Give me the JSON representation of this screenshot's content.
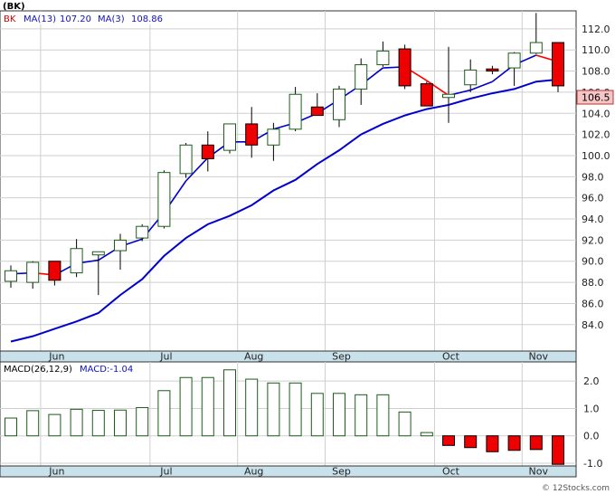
{
  "chart_data": [
    {
      "type": "candlestick",
      "title": "(BK)",
      "legend": [
        {
          "name": "BK",
          "color": "#ff0000"
        },
        {
          "name": "MA(13)",
          "value": "107.20",
          "color": "#0000cc"
        },
        {
          "name": "MA(3)",
          "value": "108.86",
          "color": "#ff0000"
        }
      ],
      "price_label": "106.5",
      "y_ticks": [
        84.0,
        86.0,
        88.0,
        90.0,
        92.0,
        94.0,
        96.0,
        98.0,
        100.0,
        102.0,
        104.0,
        106.0,
        108.0,
        110.0,
        112.0
      ],
      "y_tick_labels": [
        "84.0",
        "86.0",
        "88.0",
        "90.0",
        "92.0",
        "94.0",
        "96.0",
        "98.0",
        "100.0",
        "102.0",
        "104.0",
        "106.0",
        "108.0",
        "110.0",
        "112.0"
      ],
      "ylim": [
        81.5,
        113.7
      ],
      "x_labels": [
        {
          "label": "Jun",
          "week": 1.4
        },
        {
          "label": "Jul",
          "week": 6.4
        },
        {
          "label": "Aug",
          "week": 10.4
        },
        {
          "label": "Sep",
          "week": 14.4
        },
        {
          "label": "Oct",
          "week": 19.4
        },
        {
          "label": "Nov",
          "week": 23.4
        }
      ],
      "candles": [
        {
          "o": 88.1,
          "h": 89.6,
          "l": 87.5,
          "c": 89.1
        },
        {
          "o": 88.0,
          "h": 90.0,
          "l": 87.4,
          "c": 89.9
        },
        {
          "o": 90.0,
          "h": 90.0,
          "l": 87.7,
          "c": 88.2
        },
        {
          "o": 88.9,
          "h": 92.1,
          "l": 88.5,
          "c": 91.2
        },
        {
          "o": 90.6,
          "h": 90.9,
          "l": 86.8,
          "c": 90.9
        },
        {
          "o": 91.0,
          "h": 92.6,
          "l": 89.2,
          "c": 92.0
        },
        {
          "o": 92.2,
          "h": 93.5,
          "l": 91.9,
          "c": 93.3
        },
        {
          "o": 93.3,
          "h": 98.6,
          "l": 93.1,
          "c": 98.4
        },
        {
          "o": 98.3,
          "h": 101.2,
          "l": 97.9,
          "c": 101.0
        },
        {
          "o": 101.0,
          "h": 102.3,
          "l": 98.5,
          "c": 99.7
        },
        {
          "o": 100.5,
          "h": 103.0,
          "l": 100.2,
          "c": 103.0
        },
        {
          "o": 103.0,
          "h": 104.6,
          "l": 99.8,
          "c": 101.0
        },
        {
          "o": 101.0,
          "h": 103.1,
          "l": 99.5,
          "c": 102.5
        },
        {
          "o": 102.5,
          "h": 106.5,
          "l": 102.3,
          "c": 105.8
        },
        {
          "o": 104.6,
          "h": 105.9,
          "l": 103.8,
          "c": 103.8
        },
        {
          "o": 103.4,
          "h": 106.6,
          "l": 102.7,
          "c": 106.3
        },
        {
          "o": 106.3,
          "h": 109.2,
          "l": 104.8,
          "c": 108.6
        },
        {
          "o": 108.6,
          "h": 110.8,
          "l": 108.4,
          "c": 109.9
        },
        {
          "o": 110.1,
          "h": 110.5,
          "l": 106.3,
          "c": 106.6
        },
        {
          "o": 106.8,
          "h": 107.0,
          "l": 104.7,
          "c": 104.7
        },
        {
          "o": 105.5,
          "h": 110.3,
          "l": 103.1,
          "c": 105.8
        },
        {
          "o": 106.7,
          "h": 109.1,
          "l": 106.0,
          "c": 108.1
        },
        {
          "o": 108.2,
          "h": 108.5,
          "l": 107.7,
          "c": 108.0
        },
        {
          "o": 108.3,
          "h": 109.8,
          "l": 106.6,
          "c": 109.7
        },
        {
          "o": 109.7,
          "h": 113.5,
          "l": 109.6,
          "c": 110.7
        },
        {
          "o": 110.7,
          "h": 110.7,
          "l": 106.0,
          "c": 106.6
        }
      ],
      "ma13": [
        82.4,
        82.9,
        83.6,
        84.3,
        85.1,
        86.8,
        88.3,
        90.5,
        92.2,
        93.5,
        94.3,
        95.3,
        96.7,
        97.7,
        99.2,
        100.5,
        102.0,
        103.0,
        103.8,
        104.4,
        104.8,
        105.4,
        105.9,
        106.3,
        107.0,
        107.2
      ],
      "ma3": [
        88.8,
        88.9,
        88.7,
        89.8,
        90.1,
        91.4,
        92.1,
        94.6,
        97.6,
        99.8,
        101.3,
        101.3,
        102.5,
        103.1,
        104.0,
        105.3,
        106.7,
        108.3,
        108.4,
        107.1,
        105.7,
        106.2,
        107.0,
        108.6,
        109.5,
        108.9
      ]
    },
    {
      "type": "bar",
      "title": "MACD(26,12,9)",
      "macd_label": "MACD:-1.04",
      "y_ticks": [
        -1.0,
        0.0,
        1.0,
        2.0
      ],
      "y_tick_labels": [
        "-1.0",
        "0.0",
        "1.0",
        "2.0"
      ],
      "ylim": [
        -1.1,
        2.7
      ],
      "values": [
        0.65,
        0.92,
        0.78,
        0.97,
        0.93,
        0.94,
        1.03,
        1.65,
        2.13,
        2.13,
        2.41,
        2.07,
        1.93,
        1.93,
        1.55,
        1.55,
        1.5,
        1.5,
        0.87,
        0.12,
        -0.35,
        -0.43,
        -0.58,
        -0.53,
        -0.5,
        -1.04
      ],
      "x_labels": [
        "Jun",
        "Jul",
        "Aug",
        "Sep",
        "Oct",
        "Nov"
      ]
    }
  ],
  "footer": "© 12Stocks.com"
}
